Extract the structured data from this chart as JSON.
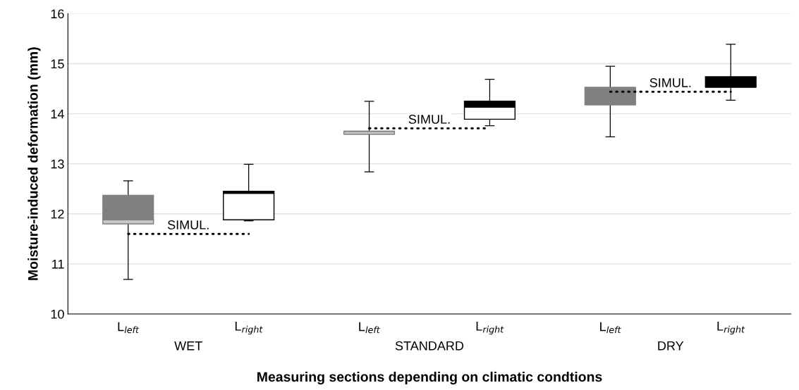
{
  "chart_data": {
    "type": "box",
    "xlabel": "Measuring sections depending on climatic condtions",
    "ylabel": "Moisture-induced deformation (mm)",
    "categories": [
      "L$_{left}$",
      "L$_{right}$",
      "L$_{left}$",
      "L$_{right}$",
      "L$_{left}$",
      "L$_{right}$"
    ],
    "boxes": [
      {
        "low": 10.69,
        "q1": 11.8,
        "median": 11.88,
        "q3": 12.37,
        "high": 12.66
      },
      {
        "low": 11.86,
        "q1": 11.88,
        "median": 12.41,
        "q3": 12.45,
        "high": 12.99
      },
      {
        "low": 12.84,
        "q1": 13.59,
        "median": 13.65,
        "q3": 13.65,
        "high": 14.25
      },
      {
        "low": 13.76,
        "q1": 13.89,
        "median": 14.13,
        "q3": 14.25,
        "high": 14.69
      },
      {
        "low": 13.54,
        "q1": 14.18,
        "median": 14.18,
        "q3": 14.53,
        "high": 14.95
      },
      {
        "low": 14.27,
        "q1": 14.53,
        "median": 14.53,
        "q3": 14.74,
        "high": 15.39
      }
    ],
    "colors": [
      [
        "#c8c8c8",
        "#808080"
      ],
      [
        "#ffffff",
        "#000000"
      ],
      [
        "#c8c8c8",
        "#808080"
      ],
      [
        "#ffffff",
        "#000000"
      ],
      [
        "#c8c8c8",
        "#808080"
      ],
      [
        "#ffffff",
        "#000000"
      ]
    ],
    "series": [
      {
        "type": "line",
        "name": "SIMUL.",
        "color": "#000000",
        "values": [
          11.6,
          11.6,
          null,
          null,
          null,
          null
        ]
      },
      {
        "type": "line",
        "name": "SIMUL.",
        "color": "#000000",
        "values": [
          null,
          null,
          13.71,
          13.71,
          null,
          null
        ]
      },
      {
        "type": "line",
        "name": "SIMUL.",
        "color": "#000000",
        "values": [
          null,
          null,
          null,
          null,
          14.44,
          14.44
        ]
      }
    ],
    "line_style": "dotted",
    "marker": "none",
    "annotations": [
      "WET",
      "STANDARD",
      "DRY"
    ],
    "ylim": [
      10,
      16
    ],
    "yticks": [
      10,
      11,
      12,
      13,
      14,
      15,
      16
    ],
    "grid": "y"
  }
}
